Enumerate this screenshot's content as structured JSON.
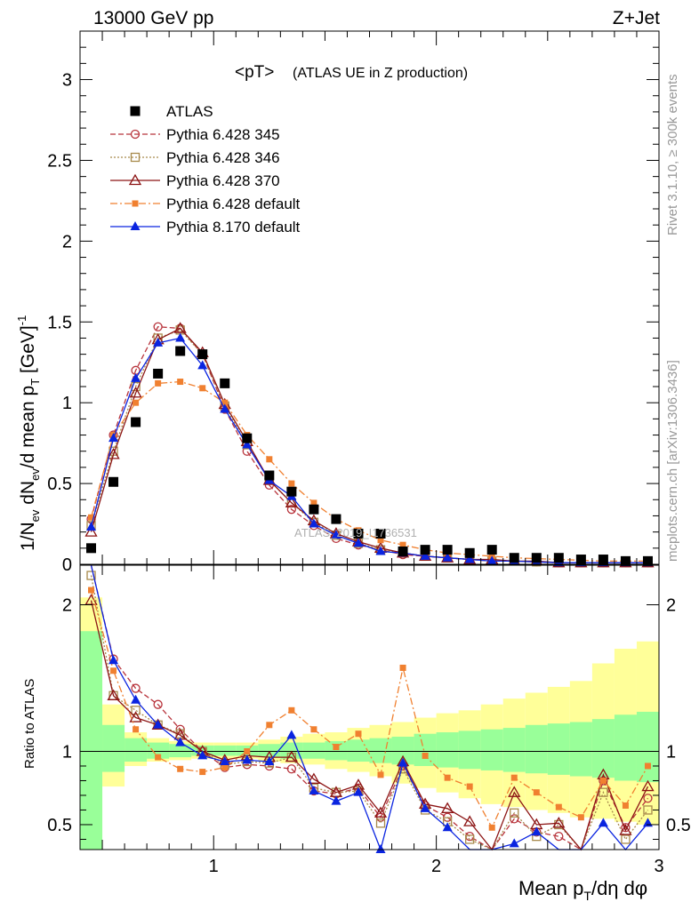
{
  "header": {
    "left": "13000 GeV pp",
    "right": "Z+Jet"
  },
  "side_text": {
    "top": "Rivet 3.1.10, ≥ 300k events",
    "bottom": "mcplots.cern.ch [arXiv:1306.3436]"
  },
  "watermark": "ATLAS_2019_I1736531",
  "colors": {
    "atlas": "#000000",
    "p345": "#b8343c",
    "p346": "#a88a4c",
    "p370": "#8c1414",
    "p6def": "#f08030",
    "p8def": "#0a24e0",
    "band_inner": "#99ff99",
    "band_outer": "#ffff99"
  },
  "chart_data": [
    {
      "type": "scatter",
      "title": "<pT>",
      "subtitle": "(ATLAS UE in Z production)",
      "ylabel": "1/N_ev dN_ev/d mean p_T [GeV]^-1",
      "xlim": [
        0.4,
        3.0
      ],
      "ylim": [
        0,
        3.3
      ],
      "yticks": [
        "0",
        "0.5",
        "1",
        "1.5",
        "2",
        "2.5",
        "3"
      ],
      "legend_position": "top-left",
      "x": [
        0.45,
        0.55,
        0.65,
        0.75,
        0.85,
        0.95,
        1.05,
        1.15,
        1.25,
        1.35,
        1.45,
        1.55,
        1.65,
        1.75,
        1.85,
        1.95,
        2.05,
        2.15,
        2.25,
        2.35,
        2.45,
        2.55,
        2.65,
        2.75,
        2.85,
        2.95
      ],
      "series": [
        {
          "name": "ATLAS",
          "key": "atlas",
          "values": [
            0.1,
            0.51,
            0.88,
            1.18,
            1.32,
            1.3,
            1.12,
            0.78,
            0.55,
            0.45,
            0.34,
            0.28,
            0.19,
            0.19,
            0.08,
            0.09,
            0.09,
            0.07,
            0.09,
            0.04,
            0.04,
            0.04,
            0.03,
            0.03,
            0.02,
            0.02
          ]
        },
        {
          "name": "Pythia 6.428 345",
          "key": "p345",
          "values": [
            0.28,
            0.8,
            1.2,
            1.47,
            1.46,
            1.3,
            0.96,
            0.7,
            0.49,
            0.34,
            0.24,
            0.16,
            0.12,
            0.09,
            0.06,
            0.05,
            0.04,
            0.03,
            0.02,
            0.02,
            0.015,
            0.01,
            0.01,
            0.01,
            0.01,
            0.01
          ]
        },
        {
          "name": "Pythia 6.428 346",
          "key": "p346",
          "values": [
            0.24,
            0.7,
            1.1,
            1.4,
            1.45,
            1.3,
            0.98,
            0.74,
            0.52,
            0.38,
            0.26,
            0.18,
            0.13,
            0.09,
            0.07,
            0.05,
            0.04,
            0.03,
            0.02,
            0.02,
            0.015,
            0.01,
            0.01,
            0.01,
            0.01,
            0.01
          ]
        },
        {
          "name": "Pythia 6.428 370",
          "key": "p370",
          "values": [
            0.2,
            0.68,
            1.06,
            1.39,
            1.46,
            1.31,
            0.99,
            0.76,
            0.52,
            0.38,
            0.27,
            0.19,
            0.14,
            0.1,
            0.07,
            0.05,
            0.04,
            0.03,
            0.03,
            0.02,
            0.02,
            0.01,
            0.01,
            0.01,
            0.01,
            0.01
          ]
        },
        {
          "name": "Pythia 6.428 default",
          "key": "p6def",
          "values": [
            0.29,
            0.8,
            1.0,
            1.12,
            1.13,
            1.09,
            1.0,
            0.8,
            0.65,
            0.5,
            0.38,
            0.28,
            0.21,
            0.15,
            0.12,
            0.09,
            0.07,
            0.06,
            0.05,
            0.04,
            0.035,
            0.03,
            0.025,
            0.02,
            0.02,
            0.02
          ]
        },
        {
          "name": "Pythia 8.170 default",
          "key": "p8def",
          "values": [
            0.23,
            0.78,
            1.15,
            1.37,
            1.4,
            1.23,
            0.96,
            0.74,
            0.52,
            0.42,
            0.25,
            0.18,
            0.13,
            0.08,
            0.07,
            0.05,
            0.04,
            0.03,
            0.02,
            0.02,
            0.015,
            0.01,
            0.01,
            0.01,
            0.01,
            0.01
          ]
        }
      ]
    },
    {
      "type": "line",
      "ylabel": "Ratio to ATLAS",
      "xlabel": "Mean p_T/dη dφ",
      "xlim": [
        0.4,
        3.0
      ],
      "ylim": [
        0.33,
        2.27
      ],
      "xticks": [
        "1",
        "2",
        "3"
      ],
      "yticks": [
        "0.5",
        "1",
        "2"
      ],
      "x": [
        0.45,
        0.55,
        0.65,
        0.75,
        0.85,
        0.95,
        1.05,
        1.15,
        1.25,
        1.35,
        1.45,
        1.55,
        1.65,
        1.75,
        1.85,
        1.95,
        2.05,
        2.15,
        2.25,
        2.35,
        2.45,
        2.55,
        2.65,
        2.75,
        2.85,
        2.95
      ],
      "band_inner": {
        "lo": [
          0.33,
          0.86,
          0.93,
          0.95,
          0.96,
          0.97,
          0.97,
          0.97,
          0.96,
          0.95,
          0.95,
          0.94,
          0.93,
          0.92,
          0.91,
          0.9,
          0.89,
          0.88,
          0.87,
          0.86,
          0.85,
          0.84,
          0.83,
          0.82,
          0.8,
          0.79
        ],
        "hi": [
          1.82,
          1.18,
          1.09,
          1.06,
          1.05,
          1.04,
          1.04,
          1.04,
          1.05,
          1.06,
          1.06,
          1.07,
          1.08,
          1.09,
          1.1,
          1.12,
          1.13,
          1.14,
          1.15,
          1.16,
          1.18,
          1.19,
          1.2,
          1.22,
          1.25,
          1.27
        ]
      },
      "band_outer": {
        "lo": [
          0.33,
          0.76,
          0.9,
          0.93,
          0.94,
          0.95,
          0.95,
          0.95,
          0.93,
          0.92,
          0.91,
          0.88,
          0.86,
          0.83,
          0.78,
          0.75,
          0.72,
          0.68,
          0.64,
          0.62,
          0.6,
          0.58,
          0.55,
          0.54,
          0.52,
          0.5
        ],
        "hi": [
          2.05,
          1.32,
          1.13,
          1.09,
          1.07,
          1.06,
          1.06,
          1.06,
          1.08,
          1.1,
          1.12,
          1.13,
          1.16,
          1.18,
          1.2,
          1.23,
          1.26,
          1.28,
          1.32,
          1.36,
          1.4,
          1.44,
          1.48,
          1.6,
          1.7,
          1.75
        ]
      },
      "series": [
        {
          "key": "p345",
          "values": [
            2.3,
            1.63,
            1.43,
            1.32,
            1.15,
            1.0,
            0.89,
            0.91,
            0.9,
            0.88,
            0.73,
            0.71,
            0.75,
            0.55,
            0.9,
            0.63,
            0.55,
            0.42,
            0.25,
            0.54,
            0.45,
            0.42,
            0.3,
            0.8,
            0.48,
            0.68
          ]
        },
        {
          "key": "p346",
          "values": [
            2.2,
            1.38,
            1.28,
            1.18,
            1.12,
            1.0,
            0.91,
            0.93,
            0.92,
            0.96,
            0.75,
            0.72,
            0.73,
            0.51,
            0.88,
            0.6,
            0.52,
            0.4,
            0.2,
            0.58,
            0.42,
            0.5,
            0.28,
            0.72,
            0.4,
            0.6
          ]
        },
        {
          "key": "p370",
          "values": [
            2.03,
            1.38,
            1.23,
            1.18,
            1.11,
            1.0,
            0.94,
            0.97,
            0.96,
            0.96,
            0.81,
            0.72,
            0.77,
            0.58,
            0.93,
            0.64,
            0.61,
            0.52,
            0.25,
            0.72,
            0.5,
            0.51,
            0.3,
            0.84,
            0.46,
            0.76
          ]
        },
        {
          "key": "p6def",
          "values": [
            2.1,
            1.55,
            1.15,
            0.96,
            0.88,
            0.86,
            0.89,
            1.0,
            1.18,
            1.28,
            1.15,
            1.03,
            1.12,
            0.84,
            1.57,
            0.97,
            0.82,
            0.76,
            0.48,
            0.82,
            0.72,
            0.62,
            0.55,
            0.8,
            0.63,
            0.9
          ]
        },
        {
          "key": "p8def",
          "values": [
            2.3,
            1.62,
            1.35,
            1.18,
            1.06,
            0.97,
            0.93,
            0.94,
            0.93,
            1.11,
            0.73,
            0.66,
            0.72,
            0.33,
            0.92,
            0.61,
            0.48,
            0.15,
            0.2,
            0.37,
            0.45,
            0.15,
            0.25,
            0.51,
            0.24,
            0.51
          ]
        }
      ]
    }
  ]
}
